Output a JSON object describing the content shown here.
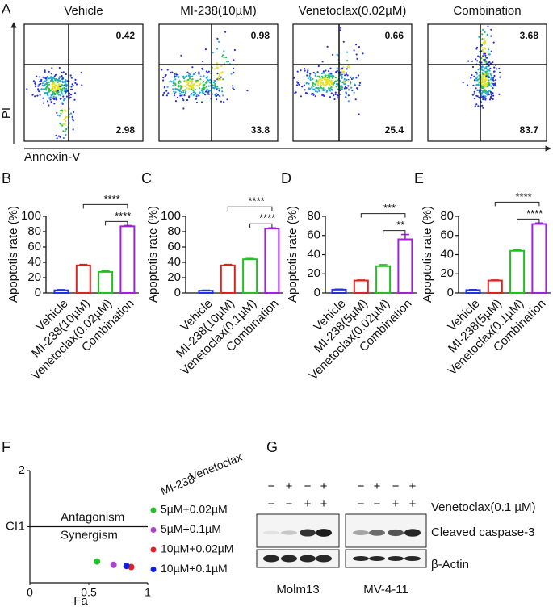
{
  "flow": {
    "label": "A",
    "y_label": "PI",
    "x_label": "Annexin-V",
    "plots": [
      {
        "title": "Vehicle",
        "upper_right": "0.42",
        "lower_right": "2.98"
      },
      {
        "title": "MI-238(10µM)",
        "upper_right": "0.98",
        "lower_right": "33.8"
      },
      {
        "title": "Venetoclax(0.02µM)",
        "upper_right": "0.66",
        "lower_right": "25.4"
      },
      {
        "title": "Combination",
        "upper_right": "3.68",
        "lower_right": "83.7"
      }
    ]
  },
  "chart_data": [
    {
      "type": "bar",
      "label": "B",
      "y_label": "Apoptotis rate (%)",
      "categories": [
        "Vehicle",
        "MI-238(10µM)",
        "Venetoclax(0.02µM)",
        "Combination"
      ],
      "values": [
        3.5,
        36,
        27.5,
        87
      ],
      "errors": [
        0.8,
        1.2,
        1.5,
        1
      ],
      "colors": [
        "#2233dd",
        "#e02020",
        "#20c020",
        "#a020e0"
      ],
      "ylim": [
        0,
        100
      ],
      "yticks": [
        0,
        20,
        40,
        60,
        80,
        100
      ],
      "annotations": [
        {
          "label": "****",
          "from": "MI-238(10µM)",
          "to": "Combination"
        },
        {
          "label": "****",
          "from": "Venetoclax(0.02µM)",
          "to": "Combination"
        }
      ]
    },
    {
      "type": "bar",
      "label": "C",
      "y_label": "Apoptotis rate (%)",
      "categories": [
        "Vehicle",
        "MI-238(10µM)",
        "Venetoclax(0.1µM)",
        "Combination"
      ],
      "values": [
        3,
        36,
        44,
        84
      ],
      "errors": [
        0.6,
        1.2,
        1,
        1
      ],
      "colors": [
        "#2233dd",
        "#e02020",
        "#20c020",
        "#a020e0"
      ],
      "ylim": [
        0,
        100
      ],
      "yticks": [
        0,
        20,
        40,
        60,
        80,
        100
      ],
      "annotations": [
        {
          "label": "****",
          "from": "MI-238(10µM)",
          "to": "Combination"
        },
        {
          "label": "****",
          "from": "Venetoclax(0.1µM)",
          "to": "Combination"
        }
      ]
    },
    {
      "type": "bar",
      "label": "D",
      "y_label": "Apoptotis rate (%)",
      "categories": [
        "Vehicle",
        "MI-238(5µM)",
        "Venetoclax(0.02µM)",
        "Combination"
      ],
      "values": [
        3.5,
        13,
        28,
        56
      ],
      "errors": [
        0.5,
        0.5,
        1.5,
        5
      ],
      "colors": [
        "#2233dd",
        "#e02020",
        "#20c020",
        "#a020e0"
      ],
      "ylim": [
        0,
        80
      ],
      "yticks": [
        0,
        20,
        40,
        60,
        80
      ],
      "annotations": [
        {
          "label": "***",
          "from": "MI-238(5µM)",
          "to": "Combination"
        },
        {
          "label": "**",
          "from": "Venetoclax(0.02µM)",
          "to": "Combination"
        }
      ]
    },
    {
      "type": "bar",
      "label": "E",
      "y_label": "Apoptotis rate (%)",
      "categories": [
        "Vehicle",
        "MI-238(5µM)",
        "Venetoclax(0.1µM)",
        "Combination"
      ],
      "values": [
        3,
        13,
        44,
        72
      ],
      "errors": [
        0.5,
        0.5,
        1,
        1
      ],
      "colors": [
        "#2233dd",
        "#e02020",
        "#20c020",
        "#a020e0"
      ],
      "ylim": [
        0,
        80
      ],
      "yticks": [
        0,
        20,
        40,
        60,
        80
      ],
      "annotations": [
        {
          "label": "****",
          "from": "MI-238(5µM)",
          "to": "Combination"
        },
        {
          "label": "****",
          "from": "Venetoclax(0.1µM)",
          "to": "Combination"
        }
      ]
    },
    {
      "type": "scatter",
      "label": "F",
      "x_label": "Fa",
      "y_label": "CI",
      "xlim": [
        0,
        1
      ],
      "xticks": [
        0,
        0.5,
        1
      ],
      "ylim": [
        0,
        2
      ],
      "yticks": [
        1,
        2
      ],
      "reference_line": 1,
      "annotations": [
        {
          "text": "Antagonism",
          "color": "#e0202a"
        },
        {
          "text": "Synergism",
          "color": "#4a3ee0"
        }
      ],
      "legend_headers": [
        "MI-238",
        "Venetoclax"
      ],
      "series": [
        {
          "name": "5µM+0.02µM",
          "color": "#22c02a",
          "x": [
            0.57
          ],
          "values": [
            0.38
          ]
        },
        {
          "name": "5µM+0.1µM",
          "color": "#b040d0",
          "x": [
            0.71
          ],
          "values": [
            0.32
          ]
        },
        {
          "name": "10µM+0.02µM",
          "color": "#e02020",
          "x": [
            0.86
          ],
          "values": [
            0.28
          ]
        },
        {
          "name": "10µM+0.1µM",
          "color": "#1020e0",
          "x": [
            0.82
          ],
          "values": [
            0.3
          ]
        }
      ]
    }
  ],
  "western_blot": {
    "label": "G",
    "treatment_label": "Venetoclax(0.1 µM)",
    "bands": [
      "Cleaved caspase-3",
      "β-Actin"
    ],
    "blots": [
      {
        "cell_line": "Molm13",
        "signs": [
          [
            "−",
            "+",
            "−",
            "+"
          ],
          [
            "−",
            "−",
            "+",
            "+"
          ]
        ]
      },
      {
        "cell_line": "MV-4-11",
        "signs": [
          [
            "−",
            "+",
            "−",
            "+"
          ],
          [
            "−",
            "−",
            "+",
            "+"
          ]
        ]
      }
    ]
  }
}
